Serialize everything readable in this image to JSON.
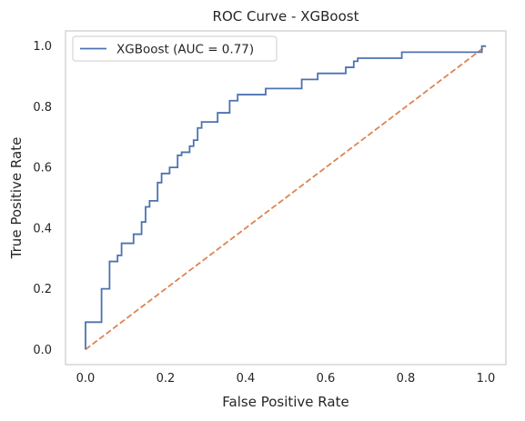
{
  "chart_data": {
    "type": "line",
    "title": "ROC Curve - XGBoost",
    "xlabel": "False Positive Rate",
    "ylabel": "True Positive Rate",
    "xlim": [
      -0.05,
      1.05
    ],
    "ylim": [
      -0.05,
      1.05
    ],
    "xticks": [
      "0.0",
      "0.2",
      "0.4",
      "0.6",
      "0.8",
      "1.0"
    ],
    "yticks": [
      "0.0",
      "0.2",
      "0.4",
      "0.6",
      "0.8",
      "1.0"
    ],
    "xtick_values": [
      0,
      0.2,
      0.4,
      0.6,
      0.8,
      1.0
    ],
    "ytick_values": [
      0,
      0.2,
      0.4,
      0.6,
      0.8,
      1.0
    ],
    "grid": false,
    "legend_position": "top-left",
    "series": [
      {
        "name": "XGBoost (AUC = 0.77)",
        "color": "#4c72b0",
        "style": "solid",
        "x": [
          0,
          0,
          0.04,
          0.04,
          0.06,
          0.06,
          0.08,
          0.08,
          0.09,
          0.09,
          0.12,
          0.12,
          0.14,
          0.14,
          0.15,
          0.15,
          0.16,
          0.16,
          0.18,
          0.18,
          0.19,
          0.19,
          0.21,
          0.21,
          0.23,
          0.23,
          0.24,
          0.24,
          0.26,
          0.26,
          0.27,
          0.27,
          0.28,
          0.28,
          0.29,
          0.29,
          0.33,
          0.33,
          0.36,
          0.36,
          0.38,
          0.38,
          0.45,
          0.45,
          0.54,
          0.54,
          0.58,
          0.58,
          0.65,
          0.65,
          0.67,
          0.67,
          0.68,
          0.68,
          0.79,
          0.79,
          0.99,
          0.99,
          1.0
        ],
        "y": [
          0,
          0.09,
          0.09,
          0.2,
          0.2,
          0.29,
          0.29,
          0.31,
          0.31,
          0.35,
          0.35,
          0.38,
          0.38,
          0.42,
          0.42,
          0.47,
          0.47,
          0.49,
          0.49,
          0.55,
          0.55,
          0.58,
          0.58,
          0.6,
          0.6,
          0.64,
          0.64,
          0.65,
          0.65,
          0.67,
          0.67,
          0.69,
          0.69,
          0.73,
          0.73,
          0.75,
          0.75,
          0.78,
          0.78,
          0.82,
          0.82,
          0.84,
          0.84,
          0.86,
          0.86,
          0.89,
          0.89,
          0.91,
          0.91,
          0.93,
          0.93,
          0.95,
          0.95,
          0.96,
          0.96,
          0.98,
          0.98,
          1.0,
          1.0
        ]
      },
      {
        "color": "#dd8452",
        "style": "dashed",
        "x": [
          0,
          1
        ],
        "y": [
          0,
          1
        ]
      }
    ]
  }
}
